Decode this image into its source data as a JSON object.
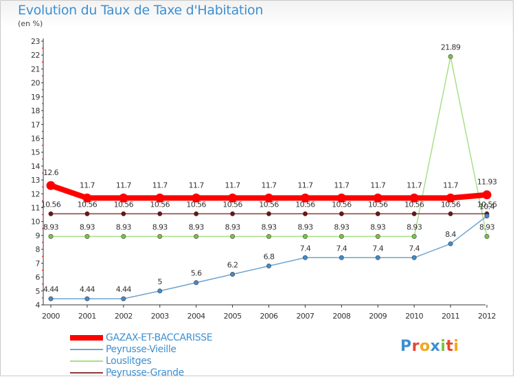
{
  "header": {
    "title": "Evolution du Taux de Taxe d'Habitation",
    "subtitle": "(en %)"
  },
  "brand": {
    "text": "Proxiti",
    "colors": [
      "#3d8fd1",
      "#e8442e",
      "#f0a81b",
      "#3d8fd1",
      "#7cc242",
      "#e8442e",
      "#f0a81b"
    ]
  },
  "chart_data": {
    "type": "line",
    "x": [
      "2000",
      "2001",
      "2002",
      "2003",
      "2004",
      "2005",
      "2006",
      "2007",
      "2008",
      "2009",
      "2010",
      "2011",
      "2012"
    ],
    "ylim": [
      4,
      23
    ],
    "yticks": [
      4,
      5,
      6,
      7,
      8,
      9,
      10,
      11,
      12,
      13,
      14,
      15,
      16,
      17,
      18,
      19,
      20,
      21,
      22,
      23
    ],
    "grid": false,
    "legend_position": "bottom-left",
    "series": [
      {
        "name": "GAZAX-ET-BACCARISSE",
        "color": "#ff0000",
        "values": [
          12.6,
          11.7,
          11.7,
          11.7,
          11.7,
          11.7,
          11.7,
          11.7,
          11.7,
          11.7,
          11.7,
          11.7,
          11.93
        ],
        "labels": [
          "12.6",
          "11.7",
          "11.7",
          "11.7",
          "11.7",
          "11.7",
          "11.7",
          "11.7",
          "11.7",
          "11.7",
          "11.7",
          "11.7",
          "11.93"
        ]
      },
      {
        "name": "Peyrusse-Vieille",
        "color": "#6fa3cf",
        "marker": "#3f8bcc",
        "values": [
          4.44,
          4.44,
          4.44,
          5,
          5.6,
          6.2,
          6.8,
          7.4,
          7.4,
          7.4,
          7.4,
          8.4,
          10.4
        ],
        "labels": [
          "4.44",
          "4.44",
          "4.44",
          "5",
          "5.6",
          "6.2",
          "6.8",
          "7.4",
          "7.4",
          "7.4",
          "7.4",
          "8.4",
          "10.4"
        ]
      },
      {
        "name": "Louslitges",
        "color": "#a6df86",
        "marker": "#7cc242",
        "values": [
          8.93,
          8.93,
          8.93,
          8.93,
          8.93,
          8.93,
          8.93,
          8.93,
          8.93,
          8.93,
          8.93,
          21.89,
          8.93
        ],
        "labels": [
          "8.93",
          "8.93",
          "8.93",
          "8.93",
          "8.93",
          "8.93",
          "8.93",
          "8.93",
          "8.93",
          "8.93",
          "8.93",
          "21.89",
          "8.93"
        ]
      },
      {
        "name": "Peyrusse-Grande",
        "color": "#8b3a3a",
        "marker": "#6b1414",
        "values": [
          10.56,
          10.56,
          10.56,
          10.56,
          10.56,
          10.56,
          10.56,
          10.56,
          10.56,
          10.56,
          10.56,
          10.56,
          10.56
        ],
        "labels": [
          "10.56",
          "10.56",
          "10.56",
          "10.56",
          "10.56",
          "10.56",
          "10.56",
          "10.56",
          "10.56",
          "10.56",
          "10.56",
          "10.56",
          "10.56"
        ]
      }
    ]
  }
}
